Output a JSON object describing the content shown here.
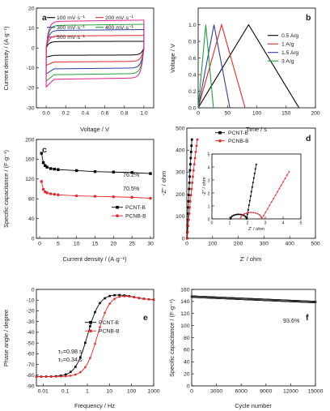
{
  "chart_data": [
    {
      "id": "a",
      "panel_label": "a",
      "type": "line",
      "xlabel": "Voltage / V",
      "ylabel": "Current density / (A·g⁻¹)",
      "xlim": [
        -0.1,
        1.1
      ],
      "ylim": [
        -30,
        20
      ],
      "xticks": [
        "0.0",
        "0.2",
        "0.4",
        "0.6",
        "0.8",
        "1.0"
      ],
      "yticks": [
        "-30",
        "-20",
        "-10",
        "0",
        "10",
        "20"
      ],
      "series": [
        {
          "name": "100 mV·s⁻¹",
          "color": "#000000",
          "upper": 3.2,
          "lower": -3.5
        },
        {
          "name": "200 mV·s⁻¹",
          "color": "#e8262b",
          "upper": 6.0,
          "lower": -6.7
        },
        {
          "name": "300 mV·s⁻¹",
          "color": "#2c3ea3",
          "upper": 8.8,
          "lower": -10.0
        },
        {
          "name": "400 mV·s⁻¹",
          "color": "#21a03a",
          "upper": 11.3,
          "lower": -12.8
        },
        {
          "name": "500 mV·s⁻¹",
          "color": "#e0208b",
          "upper": 13.3,
          "lower": -15.0
        }
      ]
    },
    {
      "id": "b",
      "panel_label": "b",
      "type": "line",
      "xlabel": "Time / s",
      "ylabel": "Voltage / V",
      "xlim": [
        0,
        200
      ],
      "ylim": [
        0,
        1.2
      ],
      "xticks": [
        "0",
        "50",
        "100",
        "150",
        "200"
      ],
      "yticks": [
        "0.0",
        "0.2",
        "0.4",
        "0.6",
        "0.8",
        "1.0"
      ],
      "series": [
        {
          "name": "0.5 A/g",
          "color": "#000000",
          "points": [
            [
              0,
              0
            ],
            [
              86,
              1.0
            ],
            [
              172,
              0
            ]
          ]
        },
        {
          "name": "1 A/g",
          "color": "#e8262b",
          "points": [
            [
              0,
              0
            ],
            [
              40,
              1.0
            ],
            [
              80,
              0
            ]
          ]
        },
        {
          "name": "1.5 A/g",
          "color": "#2c3ea3",
          "points": [
            [
              0,
              0
            ],
            [
              27,
              1.0
            ],
            [
              54,
              0
            ]
          ]
        },
        {
          "name": "3 A/g",
          "color": "#21a03a",
          "points": [
            [
              0,
              0
            ],
            [
              13,
              1.0
            ],
            [
              26,
              0
            ]
          ]
        }
      ]
    },
    {
      "id": "c",
      "panel_label": "c",
      "type": "line",
      "xlabel": "Current density / (A·g⁻¹)",
      "ylabel": "Specific capacitance / (F·g⁻¹)",
      "xlim": [
        0,
        30
      ],
      "ylim": [
        0,
        200
      ],
      "xticks": [
        "0",
        "5",
        "10",
        "15",
        "20",
        "25",
        "30"
      ],
      "yticks": [
        "0",
        "40",
        "80",
        "120",
        "160",
        "200"
      ],
      "annotations": [
        "76.2%",
        "70.5%"
      ],
      "series": [
        {
          "name": "PCNT-B",
          "color": "#000000",
          "marker": "square",
          "x": [
            0.5,
            1,
            1.5,
            2,
            3,
            4,
            5,
            10,
            15,
            20,
            25,
            30
          ],
          "y": [
            172,
            153,
            147,
            144,
            141,
            140,
            139,
            137,
            135,
            134,
            133,
            131
          ]
        },
        {
          "name": "PCNB-B",
          "color": "#e8262b",
          "marker": "circle",
          "x": [
            0.5,
            1,
            1.5,
            2,
            3,
            4,
            5,
            10,
            15,
            20,
            25,
            30
          ],
          "y": [
            115,
            99,
            94,
            92,
            90,
            89,
            88,
            86,
            85,
            84,
            83,
            81
          ]
        }
      ]
    },
    {
      "id": "d",
      "panel_label": "d",
      "type": "scatter",
      "xlabel": "Z' / ohm",
      "ylabel": "-Z'' / ohm",
      "xlim": [
        0,
        500
      ],
      "ylim": [
        0,
        500
      ],
      "xticks": [
        "0",
        "100",
        "200",
        "300",
        "400",
        "500"
      ],
      "yticks": [
        "0",
        "100",
        "200",
        "300",
        "400",
        "500"
      ],
      "series": [
        {
          "name": "PCNT-B",
          "color": "#000000",
          "marker": "square"
        },
        {
          "name": "PCNB-B",
          "color": "#e8262b",
          "marker": "circle"
        }
      ],
      "inset": {
        "xlabel": "Z' / ohm",
        "ylabel": "-Z'' / ohm",
        "xlim": [
          0,
          5
        ],
        "ylim": [
          0,
          5
        ],
        "xticks": [
          "0",
          "1",
          "2",
          "3",
          "4",
          "5"
        ],
        "yticks": [
          "0",
          "1",
          "2",
          "3",
          "4",
          "5"
        ]
      }
    },
    {
      "id": "e",
      "panel_label": "e",
      "type": "line",
      "xlabel": "Frequency / Hz",
      "ylabel": "Phase angle / degree",
      "xscale": "log",
      "xlim": [
        0.005,
        1000
      ],
      "ylim": [
        -90,
        0
      ],
      "xticks": [
        "0.01",
        "0.1",
        "1",
        "10",
        "100",
        "1000"
      ],
      "yticks": [
        "-90",
        "-80",
        "-70",
        "-60",
        "-50",
        "-40",
        "-30",
        "-20",
        "-10",
        "0"
      ],
      "annotations": [
        "τ₀=0.98 s",
        "τ₀=0.34 s"
      ],
      "series": [
        {
          "name": "PCNT-B",
          "color": "#000000",
          "marker": "square",
          "fc": 1.02,
          "fmin_dip": 40
        },
        {
          "name": "PCNB-B",
          "color": "#e8262b",
          "marker": "circle",
          "fc": 2.9,
          "fmin_dip": 40
        }
      ]
    },
    {
      "id": "f",
      "panel_label": "f",
      "type": "line",
      "xlabel": "Cycle number",
      "ylabel": "Specific capacitance / (F·g⁻¹)",
      "xlim": [
        0,
        15000
      ],
      "ylim": [
        0,
        160
      ],
      "xticks": [
        "0",
        "3000",
        "6000",
        "9000",
        "12000",
        "15000"
      ],
      "yticks": [
        "0",
        "20",
        "40",
        "60",
        "80",
        "100",
        "120",
        "140",
        "160"
      ],
      "annotations": [
        "93.6%"
      ],
      "series": [
        {
          "name": "",
          "color": "#000000",
          "marker": "square",
          "x": [
            0,
            15000
          ],
          "y": [
            148,
            139
          ]
        }
      ]
    }
  ]
}
